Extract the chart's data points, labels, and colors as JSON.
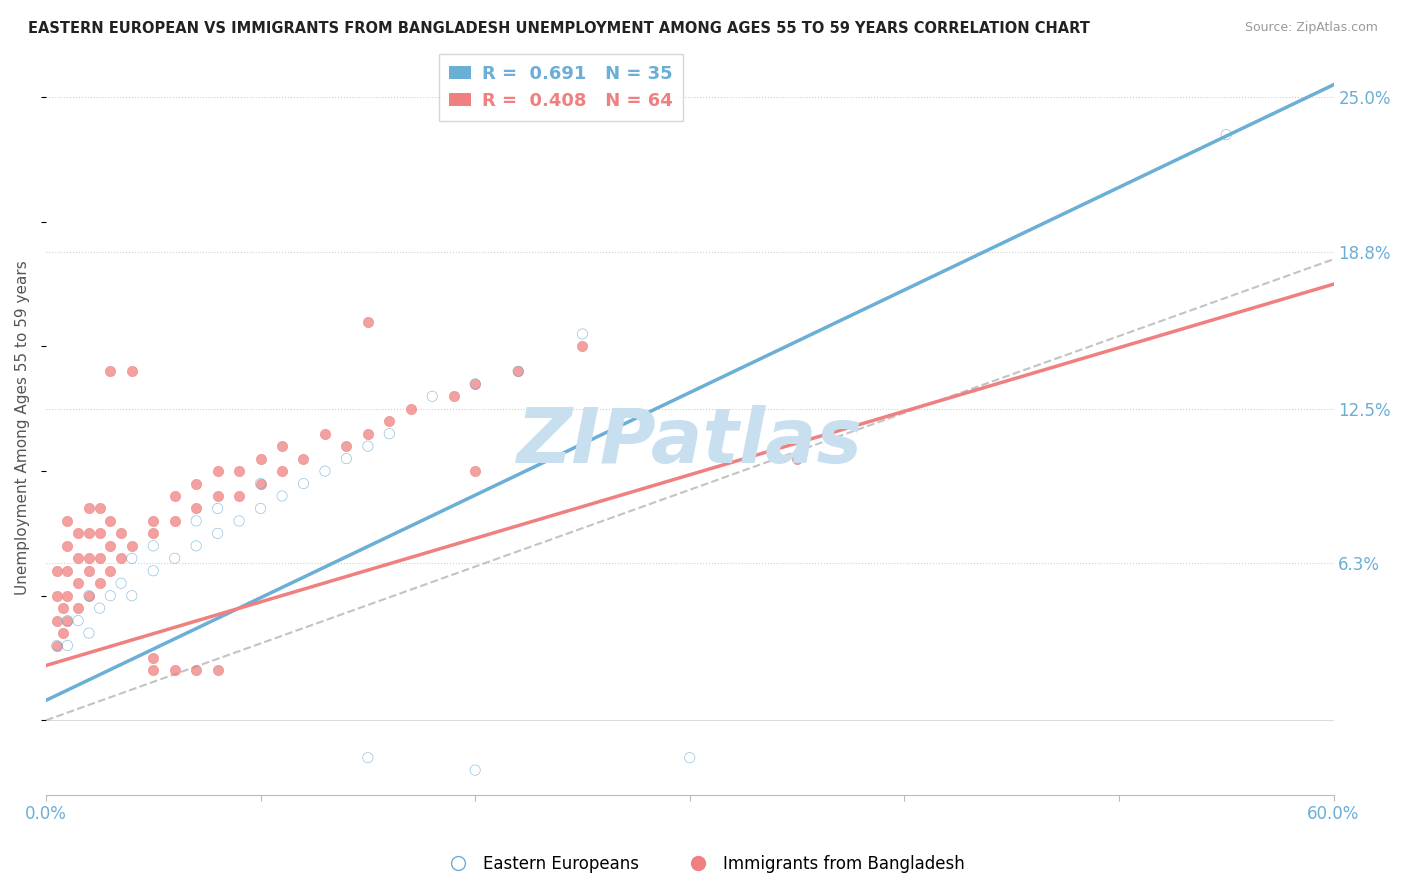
{
  "title": "EASTERN EUROPEAN VS IMMIGRANTS FROM BANGLADESH UNEMPLOYMENT AMONG AGES 55 TO 59 YEARS CORRELATION CHART",
  "source": "Source: ZipAtlas.com",
  "ylabel": "Unemployment Among Ages 55 to 59 years",
  "xmin": 0.0,
  "xmax": 0.6,
  "ymin": -0.03,
  "ymax": 0.265,
  "yticks": [
    0.063,
    0.125,
    0.188,
    0.25
  ],
  "ytick_labels": [
    "6.3%",
    "12.5%",
    "18.8%",
    "25.0%"
  ],
  "xticks": [
    0.0,
    0.1,
    0.2,
    0.3,
    0.4,
    0.5,
    0.6
  ],
  "xtick_labels": [
    "0.0%",
    "",
    "",
    "",
    "",
    "",
    "60.0%"
  ],
  "blue_color": "#6baed6",
  "pink_color": "#f08080",
  "blue_R": 0.691,
  "blue_N": 35,
  "pink_R": 0.408,
  "pink_N": 64,
  "watermark": "ZIPatlas",
  "watermark_color": "#c8dff0",
  "grid_color": "#d0d0d0",
  "tick_label_color": "#6baed6",
  "blue_line": [
    [
      0.0,
      0.008
    ],
    [
      0.6,
      0.255
    ]
  ],
  "pink_line": [
    [
      0.0,
      0.022
    ],
    [
      0.6,
      0.175
    ]
  ],
  "ref_line": [
    [
      0.0,
      0.0
    ],
    [
      0.6,
      0.185
    ]
  ],
  "blue_scatter": [
    [
      0.005,
      0.03
    ],
    [
      0.01,
      0.03
    ],
    [
      0.01,
      0.04
    ],
    [
      0.015,
      0.04
    ],
    [
      0.02,
      0.035
    ],
    [
      0.02,
      0.05
    ],
    [
      0.025,
      0.045
    ],
    [
      0.03,
      0.05
    ],
    [
      0.035,
      0.055
    ],
    [
      0.04,
      0.05
    ],
    [
      0.04,
      0.065
    ],
    [
      0.05,
      0.06
    ],
    [
      0.05,
      0.07
    ],
    [
      0.06,
      0.065
    ],
    [
      0.07,
      0.07
    ],
    [
      0.07,
      0.08
    ],
    [
      0.08,
      0.075
    ],
    [
      0.08,
      0.085
    ],
    [
      0.09,
      0.08
    ],
    [
      0.1,
      0.085
    ],
    [
      0.1,
      0.095
    ],
    [
      0.11,
      0.09
    ],
    [
      0.12,
      0.095
    ],
    [
      0.13,
      0.1
    ],
    [
      0.14,
      0.105
    ],
    [
      0.15,
      0.11
    ],
    [
      0.16,
      0.115
    ],
    [
      0.18,
      0.13
    ],
    [
      0.2,
      0.135
    ],
    [
      0.22,
      0.14
    ],
    [
      0.25,
      0.155
    ],
    [
      0.15,
      -0.015
    ],
    [
      0.2,
      -0.02
    ],
    [
      0.3,
      -0.015
    ],
    [
      0.55,
      0.235
    ]
  ],
  "pink_scatter": [
    [
      0.005,
      0.03
    ],
    [
      0.005,
      0.04
    ],
    [
      0.005,
      0.05
    ],
    [
      0.005,
      0.06
    ],
    [
      0.008,
      0.035
    ],
    [
      0.008,
      0.045
    ],
    [
      0.01,
      0.04
    ],
    [
      0.01,
      0.05
    ],
    [
      0.01,
      0.06
    ],
    [
      0.01,
      0.07
    ],
    [
      0.01,
      0.08
    ],
    [
      0.015,
      0.045
    ],
    [
      0.015,
      0.055
    ],
    [
      0.015,
      0.065
    ],
    [
      0.015,
      0.075
    ],
    [
      0.02,
      0.05
    ],
    [
      0.02,
      0.06
    ],
    [
      0.02,
      0.065
    ],
    [
      0.02,
      0.075
    ],
    [
      0.02,
      0.085
    ],
    [
      0.025,
      0.055
    ],
    [
      0.025,
      0.065
    ],
    [
      0.025,
      0.075
    ],
    [
      0.025,
      0.085
    ],
    [
      0.03,
      0.06
    ],
    [
      0.03,
      0.07
    ],
    [
      0.03,
      0.08
    ],
    [
      0.03,
      0.14
    ],
    [
      0.035,
      0.065
    ],
    [
      0.035,
      0.075
    ],
    [
      0.04,
      0.07
    ],
    [
      0.04,
      0.14
    ],
    [
      0.05,
      0.075
    ],
    [
      0.05,
      0.08
    ],
    [
      0.06,
      0.08
    ],
    [
      0.06,
      0.09
    ],
    [
      0.07,
      0.085
    ],
    [
      0.07,
      0.095
    ],
    [
      0.08,
      0.09
    ],
    [
      0.08,
      0.1
    ],
    [
      0.09,
      0.09
    ],
    [
      0.09,
      0.1
    ],
    [
      0.1,
      0.095
    ],
    [
      0.1,
      0.105
    ],
    [
      0.11,
      0.1
    ],
    [
      0.11,
      0.11
    ],
    [
      0.12,
      0.105
    ],
    [
      0.13,
      0.115
    ],
    [
      0.14,
      0.11
    ],
    [
      0.15,
      0.115
    ],
    [
      0.16,
      0.12
    ],
    [
      0.17,
      0.125
    ],
    [
      0.19,
      0.13
    ],
    [
      0.2,
      0.135
    ],
    [
      0.22,
      0.14
    ],
    [
      0.25,
      0.15
    ],
    [
      0.15,
      0.16
    ],
    [
      0.2,
      0.1
    ],
    [
      0.05,
      0.025
    ],
    [
      0.05,
      0.02
    ],
    [
      0.06,
      0.02
    ],
    [
      0.07,
      0.02
    ],
    [
      0.08,
      0.02
    ],
    [
      0.35,
      0.105
    ]
  ]
}
